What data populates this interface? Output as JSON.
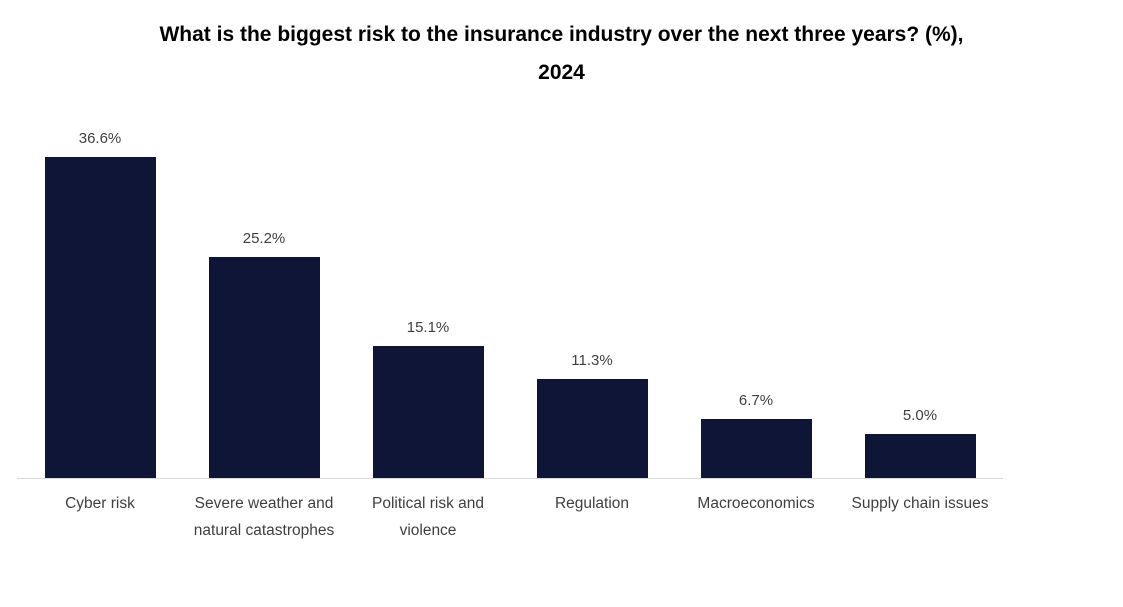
{
  "chart_data": {
    "type": "bar",
    "title": "What is the biggest risk to the insurance industry over the next three years? (%), 2024",
    "categories": [
      "Cyber risk",
      "Severe weather and natural catastrophes",
      "Political risk and violence",
      "Regulation",
      "Macroeconomics",
      "Supply chain issues"
    ],
    "values": [
      36.6,
      25.2,
      15.1,
      11.3,
      6.7,
      5.0
    ],
    "value_labels": [
      "36.6%",
      "25.2%",
      "15.1%",
      "11.3%",
      "6.7%",
      "5.0%"
    ],
    "xlabel": "",
    "ylabel": "",
    "ylim": [
      0,
      40
    ],
    "grid": false,
    "legend_position": "none",
    "bar_color": "#0e1537",
    "axis_line_color": "#d9d9d9",
    "data_label_color": "#404040",
    "category_label_color": "#3f3f3f",
    "title_color": "#000000"
  }
}
